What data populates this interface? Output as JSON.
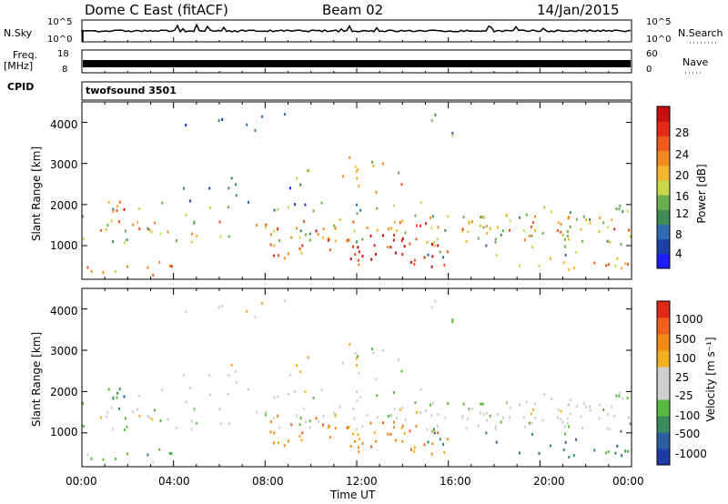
{
  "header": {
    "title_left": "Dome C East (fitACF)",
    "title_center": "Beam 02",
    "title_right": "14/Jan/2015"
  },
  "colors": {
    "power": [
      "#1d1dff",
      "#1c3fa8",
      "#2f6bb0",
      "#3f8c54",
      "#6bb04f",
      "#c8d84a",
      "#f2b62c",
      "#f58a22",
      "#f05a1c",
      "#e22a16",
      "#c80f10"
    ],
    "velocity": [
      "#1d3ca8",
      "#2c5fa0",
      "#3b8a5a",
      "#5aba3e",
      "#cfcfcf",
      "#cfcfcf",
      "#f2b020",
      "#f28a18",
      "#f0601a",
      "#e02818"
    ]
  },
  "chart_data": [
    {
      "type": "line",
      "name": "nsky-nsearch-panel",
      "left_label": "N.Sky",
      "right_label": "N.Search",
      "left_ticks": [
        "10^5",
        "10^0"
      ],
      "right_ticks": [
        "10^5",
        "10^0"
      ]
    },
    {
      "type": "line",
      "name": "freq-nave-panel",
      "left_label": "Freq.",
      "left_unit": "[MHz]",
      "right_label": "Nave",
      "left_ticks": [
        "18",
        "8"
      ],
      "right_ticks": [
        "60",
        "0"
      ]
    },
    {
      "type": "table",
      "name": "cpid-panel",
      "left_label": "CPID",
      "value": "twofsound 3501"
    },
    {
      "type": "heatmap",
      "name": "power-panel",
      "ylabel": "Slant Range [km]",
      "yticks": [
        "4000",
        "3000",
        "2000",
        "1000"
      ],
      "ylim": [
        180,
        4500
      ],
      "xlim": [
        0,
        24
      ],
      "colorbar_label": "Power [dB]",
      "colorbar_ticks": [
        "28",
        "24",
        "20",
        "16",
        "12",
        "8",
        "4"
      ],
      "colorbar_range": [
        0,
        30
      ]
    },
    {
      "type": "heatmap",
      "name": "velocity-panel",
      "ylabel": "Slant Range [km]",
      "yticks": [
        "4000",
        "3000",
        "2000",
        "1000"
      ],
      "ylim": [
        180,
        4500
      ],
      "xlim": [
        0,
        24
      ],
      "colorbar_label": "Velocity [m s⁻¹]",
      "colorbar_ticks": [
        "1000",
        "500",
        "100",
        "25",
        "-25",
        "-100",
        "-500",
        "-1000"
      ],
      "xticks": [
        "00:00",
        "04:00",
        "08:00",
        "12:00",
        "16:00",
        "20:00",
        "00:00"
      ],
      "xlabel": "Time UT"
    }
  ]
}
